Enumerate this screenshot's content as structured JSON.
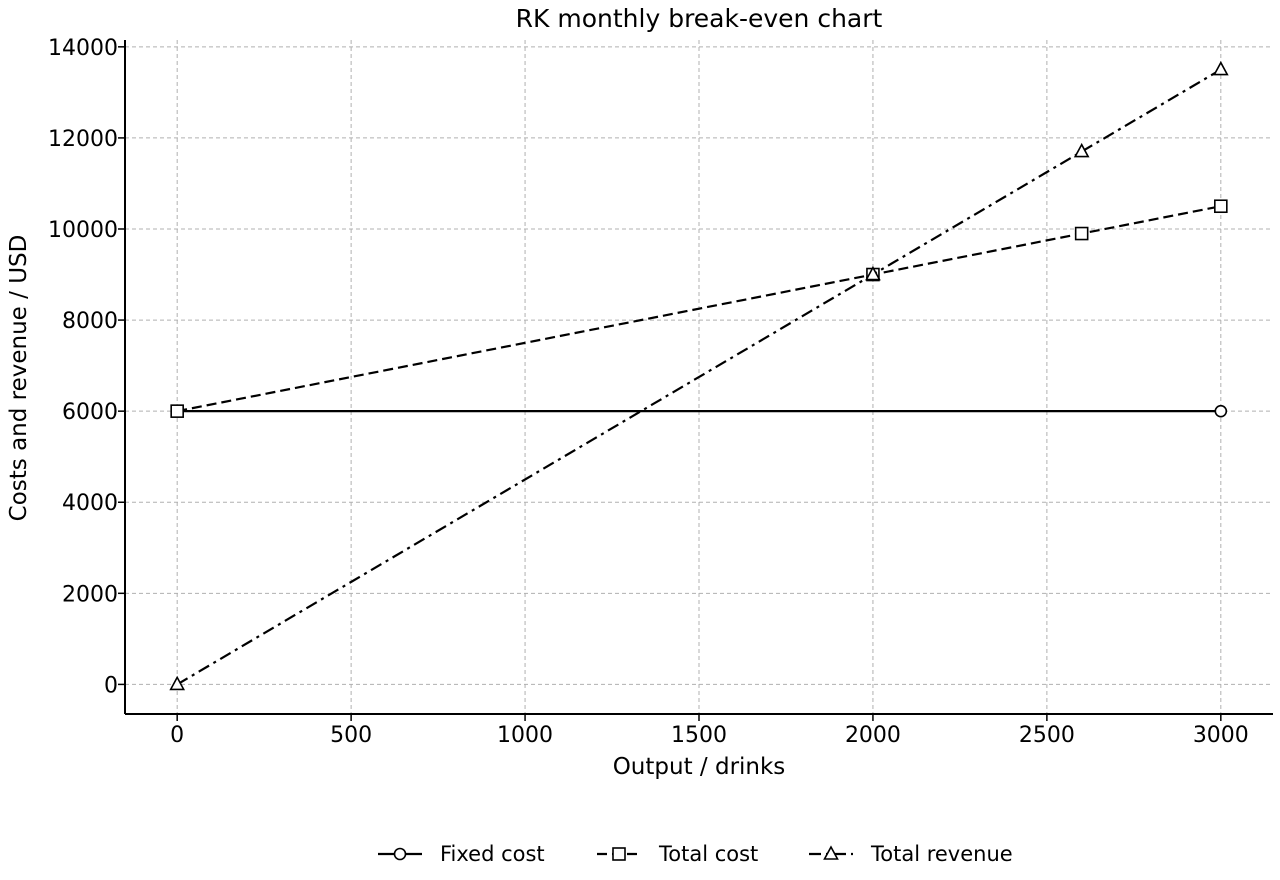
{
  "chart_data": {
    "type": "line",
    "title": "RK monthly break-even chart",
    "xlabel": "Output / drinks",
    "ylabel": "Costs and revenue / USD",
    "xlim": [
      -150,
      3150
    ],
    "ylim": [
      -650,
      14150
    ],
    "xticks": [
      0,
      500,
      1000,
      1500,
      2000,
      2500,
      3000
    ],
    "yticks": [
      0,
      2000,
      4000,
      6000,
      8000,
      10000,
      12000,
      14000
    ],
    "grid": true,
    "legend_position": "bottom-center",
    "series": [
      {
        "name": "Fixed cost",
        "marker": "circle",
        "line_style": "solid",
        "x": [
          0,
          3000
        ],
        "y": [
          6000,
          6000
        ]
      },
      {
        "name": "Total cost",
        "marker": "square",
        "line_style": "dashed",
        "x": [
          0,
          2000,
          2600,
          3000
        ],
        "y": [
          6000,
          9000,
          9900,
          10500
        ]
      },
      {
        "name": "Total revenue",
        "marker": "triangle",
        "line_style": "dashdot",
        "x": [
          0,
          2000,
          2600,
          3000
        ],
        "y": [
          0,
          9000,
          11700,
          13500
        ]
      }
    ]
  }
}
